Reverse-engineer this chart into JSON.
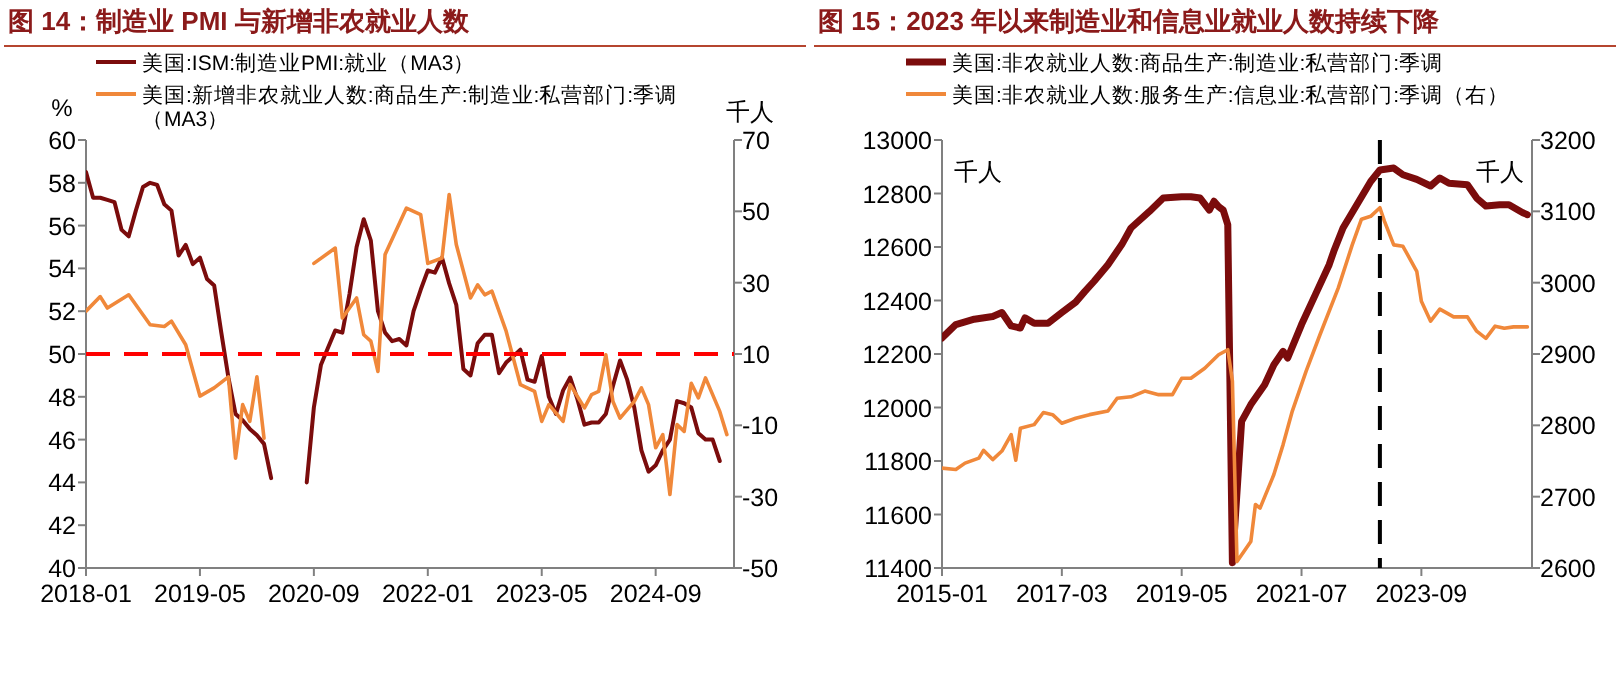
{
  "chart_data": [
    {
      "type": "line",
      "title": "图 14：制造业 PMI 与新增非农就业人数",
      "ylabel": "%",
      "y2label": "千人",
      "legend": "top",
      "x": [
        "2018-01",
        "2018-02",
        "2018-03",
        "2018-04",
        "2018-05",
        "2018-06",
        "2018-07",
        "2018-08",
        "2018-09",
        "2018-10",
        "2018-11",
        "2018-12",
        "2019-01",
        "2019-02",
        "2019-03",
        "2019-04",
        "2019-05",
        "2019-06",
        "2019-07",
        "2019-08",
        "2019-09",
        "2019-10",
        "2019-11",
        "2019-12",
        "2020-01",
        "2020-02",
        "2020-03",
        "2020-04",
        "2020-05",
        "2020-06",
        "2020-07",
        "2020-08",
        "2020-09",
        "2020-10",
        "2020-11",
        "2020-12",
        "2021-01",
        "2021-02",
        "2021-03",
        "2021-04",
        "2021-05",
        "2021-06",
        "2021-07",
        "2021-08",
        "2021-09",
        "2021-10",
        "2021-11",
        "2021-12",
        "2022-01",
        "2022-02",
        "2022-03",
        "2022-04",
        "2022-05",
        "2022-06",
        "2022-07",
        "2022-08",
        "2022-09",
        "2022-10",
        "2022-11",
        "2022-12",
        "2023-01",
        "2023-02",
        "2023-03",
        "2023-04",
        "2023-05",
        "2023-06",
        "2023-07",
        "2023-08",
        "2023-09",
        "2023-10",
        "2023-11",
        "2023-12",
        "2024-01",
        "2024-02",
        "2024-03",
        "2024-04",
        "2024-05",
        "2024-06",
        "2024-07",
        "2024-08",
        "2024-09",
        "2024-10",
        "2024-11",
        "2024-12",
        "2025-01",
        "2025-02",
        "2025-03",
        "2025-04",
        "2025-05",
        "2025-06"
      ],
      "series": [
        {
          "name": "美国:ISM:制造业PMI:就业（MA3）",
          "color": "#7b0c0c",
          "values": [
            58.5,
            57.3,
            57.3,
            57.2,
            57.1,
            55.8,
            55.5,
            56.7,
            57.8,
            58.0,
            57.9,
            57.0,
            56.7,
            54.6,
            55.1,
            54.2,
            54.5,
            53.5,
            53.2,
            51.0,
            48.9,
            47.2,
            46.9,
            46.5,
            46.2,
            45.8,
            44.2,
            null,
            null,
            null,
            null,
            44.0,
            47.5,
            49.5,
            50.3,
            51.1,
            51.0,
            52.8,
            55.0,
            56.3,
            55.3,
            52.0,
            51.0,
            50.6,
            50.7,
            50.4,
            52.0,
            53.0,
            53.9,
            53.8,
            54.5,
            53.3,
            52.3,
            49.3,
            49.0,
            50.5,
            50.9,
            50.9,
            49.1,
            49.6,
            49.9,
            50.2,
            48.8,
            48.7,
            49.9,
            48.0,
            47.2,
            48.3,
            48.9,
            47.9,
            46.7,
            46.8,
            46.8,
            47.2,
            48.5,
            49.7,
            48.8,
            47.5,
            45.5,
            44.5,
            44.8,
            45.5,
            46.0,
            47.8,
            47.7,
            47.5,
            46.3,
            46.0,
            46.0,
            45.0
          ]
        },
        {
          "name": "美国:新增非农就业人数:商品生产:制造业:私营部门:季调（MA3）",
          "color": "#f0883a",
          "axis": "y2",
          "x": [
            "2018-01",
            "2018-03",
            "2018-04",
            "2018-07",
            "2018-10",
            "2018-12",
            "2019-01",
            "2019-03",
            "2019-05",
            "2019-07",
            "2019-09",
            "2019-10",
            "2019-11",
            "2019-12",
            "2020-01",
            "2020-02",
            "2020-03",
            "2020-04",
            "2020-05",
            "2020-06",
            "2020-07",
            "2020-08",
            "2020-09",
            "2020-12",
            "2021-01",
            "2021-03",
            "2021-04",
            "2021-05",
            "2021-06",
            "2021-07",
            "2021-10",
            "2021-12",
            "2022-01",
            "2022-03",
            "2022-04",
            "2022-05",
            "2022-07",
            "2022-08",
            "2022-09",
            "2022-10",
            "2022-12",
            "2023-01",
            "2023-02",
            "2023-04",
            "2023-05",
            "2023-06",
            "2023-08",
            "2023-09",
            "2023-11",
            "2023-12",
            "2024-01",
            "2024-02",
            "2024-03",
            "2024-04",
            "2024-06",
            "2024-07",
            "2024-08",
            "2024-09",
            "2024-10",
            "2024-11",
            "2024-12",
            "2025-01",
            "2025-02",
            "2025-03",
            "2025-04",
            "2025-06",
            "2025-07"
          ],
          "values": [
            22.0,
            26.1,
            22.9,
            26.6,
            18.2,
            17.7,
            19.2,
            12.6,
            -1.8,
            0.5,
            3.6,
            -19.2,
            -4.2,
            -8.9,
            3.6,
            -13.6,
            null,
            null,
            null,
            null,
            null,
            null,
            35.4,
            39.7,
            20.1,
            25.7,
            15.4,
            13.6,
            5.1,
            37.9,
            50.9,
            49.1,
            35.4,
            36.9,
            54.7,
            40.7,
            25.7,
            29.4,
            26.6,
            27.6,
            16.4,
            8.9,
            1.4,
            -0.5,
            -8.9,
            -4.2,
            -8.9,
            1.4,
            -5.1,
            -1.4,
            -0.5,
            9.8,
            -3.3,
            -8.0,
            -3.3,
            0.5,
            -4.2,
            -16.3,
            -12.6,
            -29.4,
            -9.8,
            -11.7,
            1.8,
            -2.3,
            3.3,
            -6.1,
            -12.6
          ]
        }
      ],
      "xlim": [
        "2018-01",
        "2025-08"
      ],
      "xticks": [
        "2018-01",
        "2019-05",
        "2020-09",
        "2022-01",
        "2023-05",
        "2024-09"
      ],
      "ylim": [
        40,
        60
      ],
      "yticks": [
        40,
        42,
        44,
        46,
        48,
        50,
        52,
        54,
        56,
        58,
        60
      ],
      "y2lim": [
        -50,
        70
      ],
      "y2ticks": [
        -50,
        -30,
        -10,
        10,
        30,
        50,
        70
      ],
      "ref_lines": [
        {
          "axis": "y",
          "value": 50,
          "color": "#ff0000",
          "line_style": "dashed"
        }
      ]
    },
    {
      "type": "line",
      "title": "图 15：2023 年以来制造业和信息业就业人数持续下降",
      "ylabel": "千人",
      "y2label": "千人",
      "legend": "top",
      "series": [
        {
          "name": "美国:非农就业人数:商品生产:制造业:私营部门:季调",
          "color": "#7b0c0c",
          "x": [
            "2015-01",
            "2015-04",
            "2015-08",
            "2015-12",
            "2016-02",
            "2016-04",
            "2016-06",
            "2016-07",
            "2016-09",
            "2016-12",
            "2017-03",
            "2017-06",
            "2017-08",
            "2017-10",
            "2018-01",
            "2018-04",
            "2018-06",
            "2018-10",
            "2019-01",
            "2019-05",
            "2019-07",
            "2019-09",
            "2019-11",
            "2019-12",
            "2020-01",
            "2020-02",
            "2020-03",
            "2020-04",
            "2020-06",
            "2020-08",
            "2020-11",
            "2021-01",
            "2021-03",
            "2021-04",
            "2021-07",
            "2021-10",
            "2022-01",
            "2022-02",
            "2022-04",
            "2022-07",
            "2022-10",
            "2022-12",
            "2023-03",
            "2023-05",
            "2023-08",
            "2023-11",
            "2024-01",
            "2024-03",
            "2024-07",
            "2024-09",
            "2024-11",
            "2025-02",
            "2025-04",
            "2025-07",
            "2025-08"
          ],
          "values": [
            12260,
            12310,
            12330,
            12340,
            12355,
            12305,
            12297,
            12335,
            12315,
            12315,
            12355,
            12394,
            12434,
            12472,
            12534,
            12609,
            12671,
            12733,
            12783,
            12788,
            12788,
            12783,
            12738,
            12771,
            12751,
            12738,
            12683,
            11420,
            11948,
            12011,
            12085,
            12160,
            12210,
            12185,
            12310,
            12422,
            12534,
            12584,
            12671,
            12758,
            12845,
            12888,
            12895,
            12870,
            12853,
            12828,
            12858,
            12838,
            12833,
            12783,
            12753,
            12758,
            12758,
            12728,
            12721
          ]
        },
        {
          "name": "美国:非农就业人数:服务生产:信息业:私营部门:季调（右）",
          "color": "#f0883a",
          "axis": "y2",
          "x": [
            "2015-01",
            "2015-04",
            "2015-06",
            "2015-09",
            "2015-10",
            "2015-12",
            "2016-02",
            "2016-04",
            "2016-05",
            "2016-06",
            "2016-09",
            "2016-11",
            "2017-01",
            "2017-03",
            "2017-06",
            "2017-09",
            "2018-01",
            "2018-03",
            "2018-06",
            "2018-09",
            "2018-12",
            "2019-03",
            "2019-05",
            "2019-07",
            "2019-10",
            "2020-01",
            "2020-03",
            "2020-04",
            "2020-05",
            "2020-08",
            "2020-09",
            "2020-10",
            "2021-01",
            "2021-03",
            "2021-05",
            "2021-08",
            "2021-11",
            "2022-03",
            "2022-06",
            "2022-08",
            "2022-10",
            "2022-12",
            "2023-01",
            "2023-03",
            "2023-05",
            "2023-08",
            "2023-09",
            "2023-11",
            "2024-01",
            "2024-04",
            "2024-07",
            "2024-09",
            "2024-11",
            "2025-01",
            "2025-03",
            "2025-05",
            "2025-08"
          ],
          "values": [
            2740,
            2738,
            2747,
            2754,
            2765,
            2752,
            2764,
            2787,
            2751,
            2796,
            2801,
            2818,
            2815,
            2803,
            2810,
            2815,
            2820,
            2838,
            2840,
            2848,
            2843,
            2843,
            2866,
            2866,
            2880,
            2899,
            2906,
            2862,
            2609,
            2637,
            2689,
            2684,
            2731,
            2773,
            2820,
            2876,
            2927,
            2993,
            3053,
            3089,
            3093,
            3105,
            3086,
            3053,
            3051,
            3016,
            2974,
            2946,
            2963,
            2952,
            2952,
            2932,
            2922,
            2939,
            2936,
            2938,
            2938
          ]
        }
      ],
      "xlim": [
        "2015-01",
        "2025-09"
      ],
      "xticks": [
        "2015-01",
        "2017-03",
        "2019-05",
        "2021-07",
        "2023-09"
      ],
      "ylim": [
        11400,
        13000
      ],
      "yticks": [
        11400,
        11600,
        11800,
        12000,
        12200,
        12400,
        12600,
        12800,
        13000
      ],
      "y2lim": [
        2600,
        3200
      ],
      "y2ticks": [
        2600,
        2700,
        2800,
        2900,
        3000,
        3100,
        3200
      ],
      "ref_lines": [
        {
          "axis": "x",
          "value": "2022-12",
          "color": "#000000",
          "line_style": "dashed"
        }
      ]
    }
  ]
}
